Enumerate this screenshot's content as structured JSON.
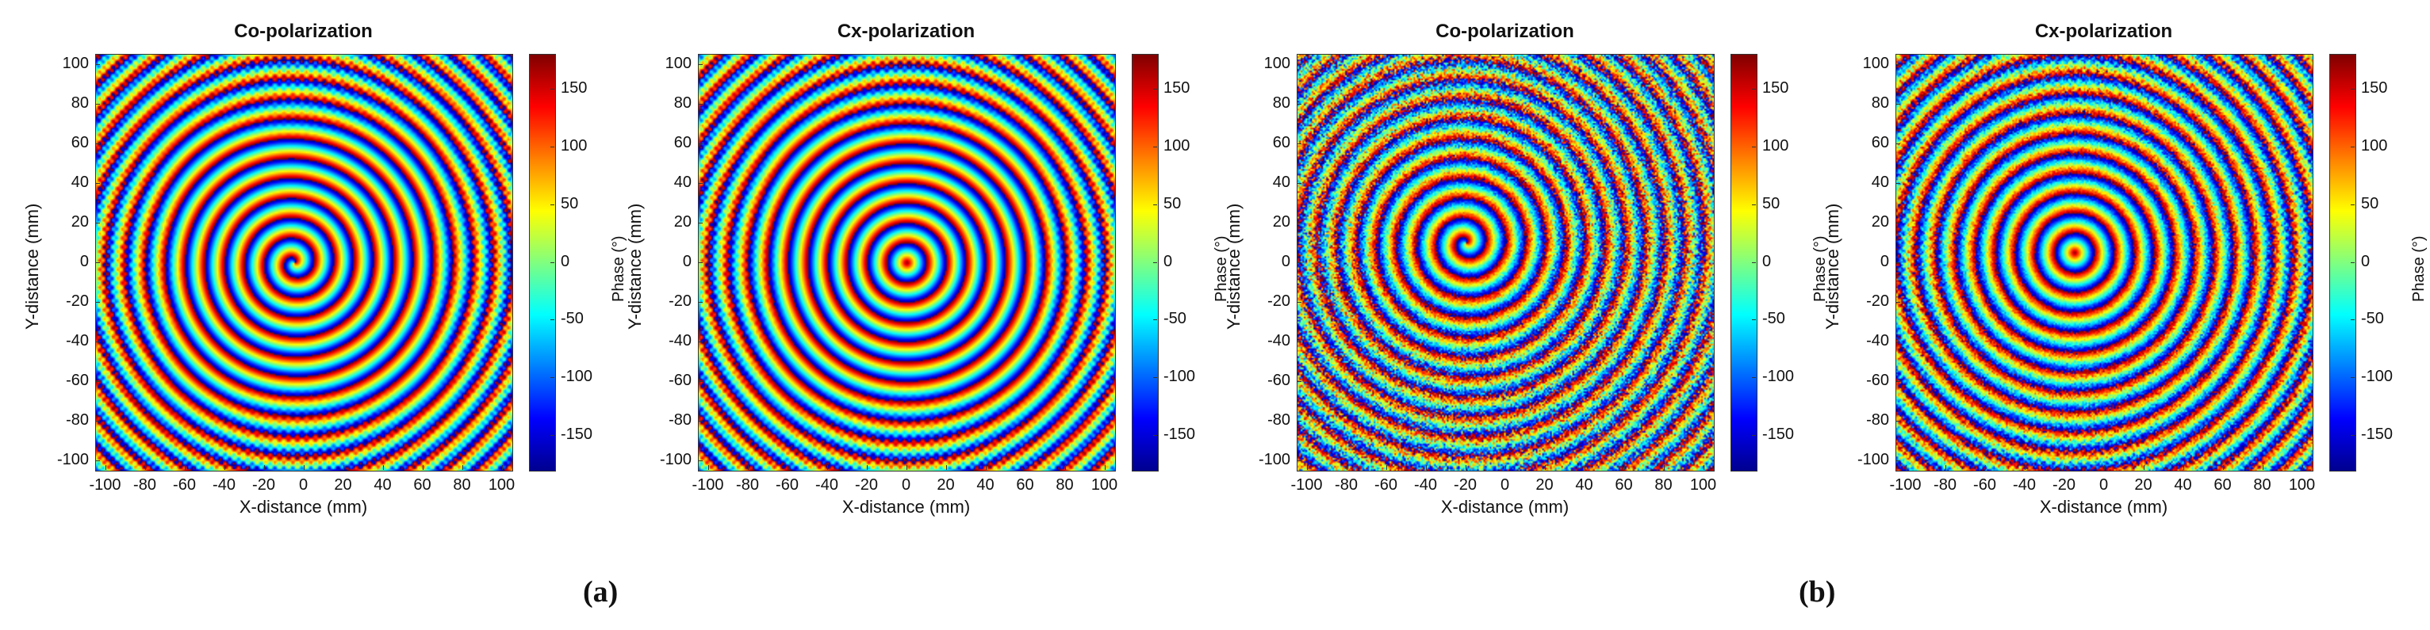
{
  "colors": {
    "jet": [
      "#00008f",
      "#0000ff",
      "#00ffff",
      "#ffff00",
      "#ff0000",
      "#800000"
    ]
  },
  "captions": [
    "(a)",
    "(b)"
  ],
  "chart_data": [
    {
      "type": "heatmap",
      "title": "Co-polarization",
      "xlabel": "X-distance (mm)",
      "ylabel": "Y-distance (mm)",
      "xlim": [
        -105,
        105
      ],
      "ylim": [
        -105,
        105
      ],
      "xticks": [
        -100,
        -80,
        -60,
        -40,
        -20,
        0,
        20,
        40,
        60,
        80,
        100
      ],
      "yticks": [
        100,
        80,
        60,
        40,
        20,
        0,
        -20,
        -40,
        -60,
        -80,
        -100
      ],
      "colorbar": {
        "label": "Phase (°)",
        "range": [
          -180,
          180
        ],
        "ticks": [
          150,
          100,
          50,
          0,
          -50,
          -100,
          -150
        ]
      },
      "pattern": {
        "center_mm": [
          -5,
          0
        ],
        "spiral": 1,
        "noise": 0.0,
        "ring_spacing_mm": 10
      }
    },
    {
      "type": "heatmap",
      "title": "Cx-polarization",
      "xlabel": "X-distance (mm)",
      "ylabel": "Y-distance (mm)",
      "xlim": [
        -105,
        105
      ],
      "ylim": [
        -105,
        105
      ],
      "xticks": [
        -100,
        -80,
        -60,
        -40,
        -20,
        0,
        20,
        40,
        60,
        80,
        100
      ],
      "yticks": [
        100,
        80,
        60,
        40,
        20,
        0,
        -20,
        -40,
        -60,
        -80,
        -100
      ],
      "colorbar": {
        "label": "Phase (°)",
        "range": [
          -180,
          180
        ],
        "ticks": [
          150,
          100,
          50,
          0,
          -50,
          -100,
          -150
        ]
      },
      "pattern": {
        "center_mm": [
          0,
          0
        ],
        "spiral": 0,
        "noise": 0.0,
        "ring_spacing_mm": 10
      }
    },
    {
      "type": "heatmap",
      "title": "Co-polarization",
      "xlabel": "X-distance (mm)",
      "ylabel": "Y-distance (mm)",
      "xlim": [
        -105,
        105
      ],
      "ylim": [
        -105,
        105
      ],
      "xticks": [
        -100,
        -80,
        -60,
        -40,
        -20,
        0,
        20,
        40,
        60,
        80,
        100
      ],
      "yticks": [
        100,
        80,
        60,
        40,
        20,
        0,
        -20,
        -40,
        -60,
        -80,
        -100
      ],
      "colorbar": {
        "label": "Phase (°)",
        "range": [
          -180,
          180
        ],
        "ticks": [
          150,
          100,
          50,
          0,
          -50,
          -100,
          -150
        ]
      },
      "pattern": {
        "center_mm": [
          -20,
          10
        ],
        "spiral": 1,
        "noise": 0.6,
        "ring_spacing_mm": 10
      }
    },
    {
      "type": "heatmap",
      "title": "Cx-polarization",
      "xlabel": "X-distance (mm)",
      "ylabel": "Y-distance (mm)",
      "xlim": [
        -105,
        105
      ],
      "ylim": [
        -105,
        105
      ],
      "xticks": [
        -100,
        -80,
        -60,
        -40,
        -20,
        0,
        20,
        40,
        60,
        80,
        100
      ],
      "yticks": [
        100,
        80,
        60,
        40,
        20,
        0,
        -20,
        -40,
        -60,
        -80,
        -100
      ],
      "colorbar": {
        "label": "Phase (°)",
        "range": [
          -180,
          180
        ],
        "ticks": [
          150,
          100,
          50,
          0,
          -50,
          -100,
          -150
        ]
      },
      "pattern": {
        "center_mm": [
          -15,
          5
        ],
        "spiral": 0,
        "noise": 0.35,
        "ring_spacing_mm": 10
      }
    }
  ]
}
